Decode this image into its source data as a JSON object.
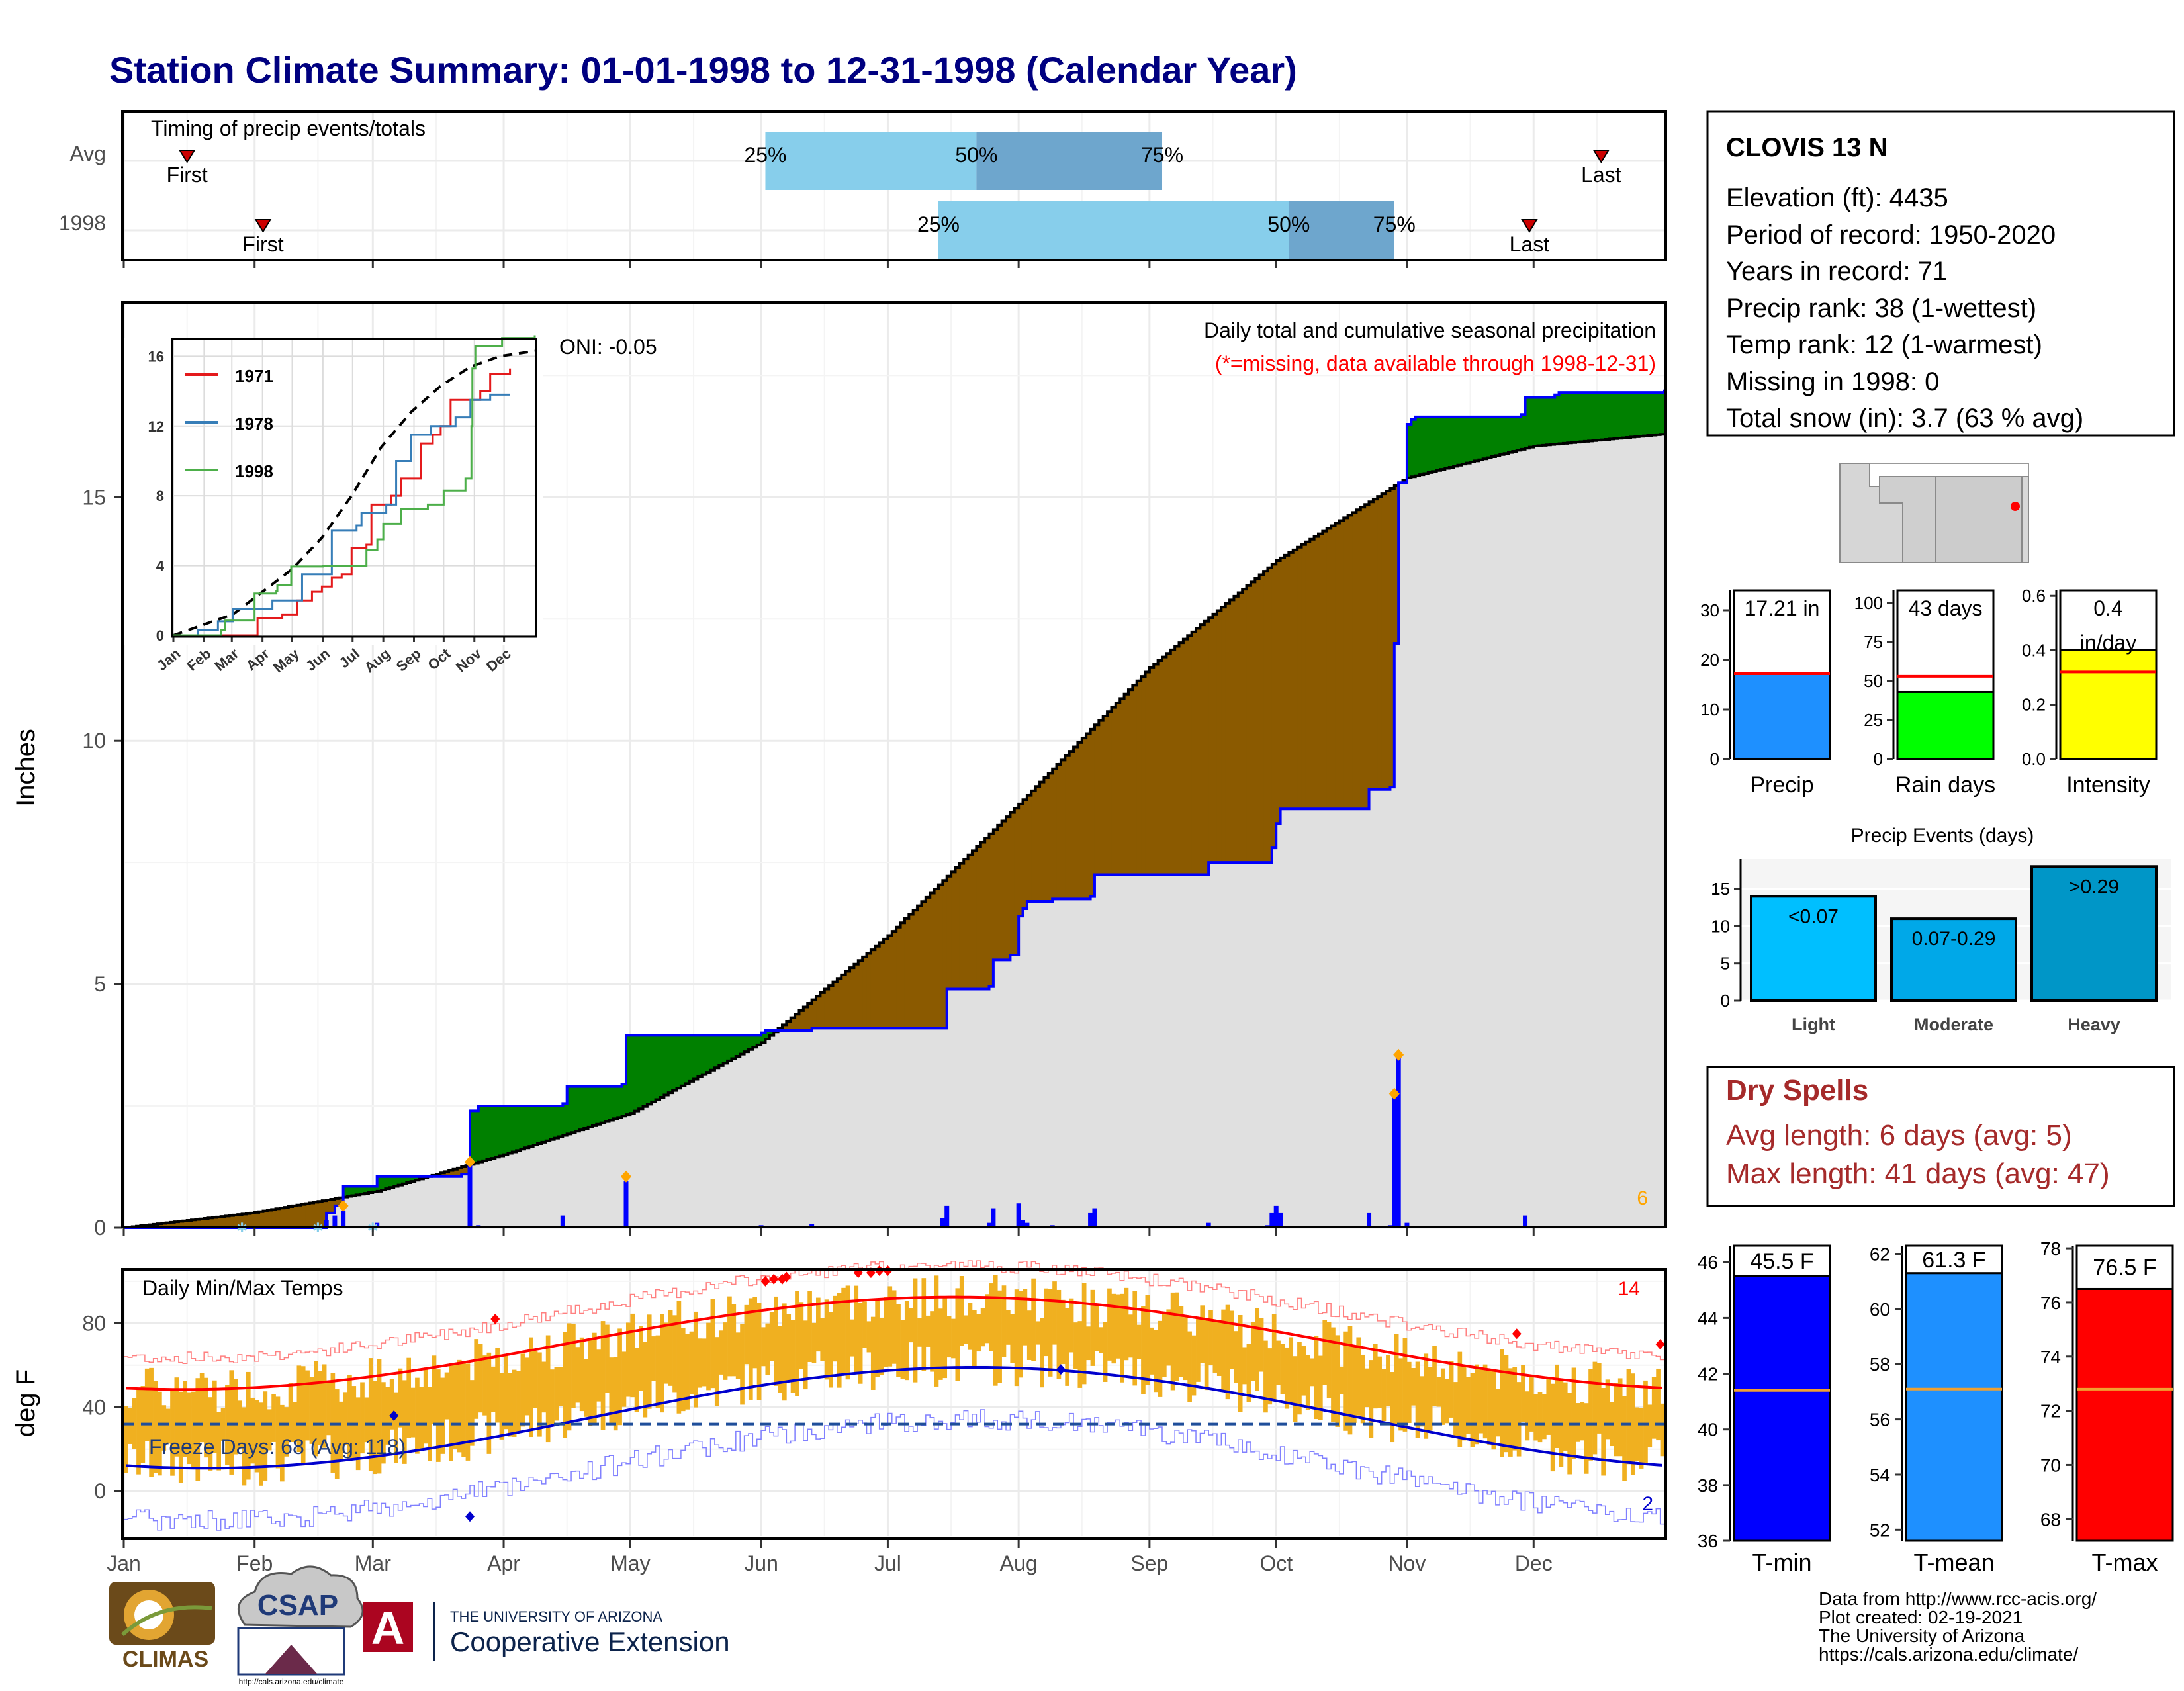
{
  "title": "Station Climate Summary: 01-01-1998 to 12-31-1998 (Calendar Year)",
  "colors": {
    "title": "#000080",
    "precip_bar": "#0000ff",
    "cum_line": "#0000ff",
    "above_fill": "#008000",
    "below_fill": "#8b5a00",
    "avg_fill": "#e0e0e0",
    "temp_bar": "#f0b020",
    "tmax_avg": "#ff0000",
    "tmin_avg": "#0000cd",
    "dry_spells": "#a52a2a",
    "missing_note": "#ff0000",
    "diamond": "#ffa500"
  },
  "months": [
    "Jan",
    "Feb",
    "Mar",
    "Apr",
    "May",
    "Jun",
    "Jul",
    "Aug",
    "Sep",
    "Oct",
    "Nov",
    "Dec"
  ],
  "timing": {
    "title": "Timing of precip events/totals",
    "rows": [
      {
        "label": "Avg",
        "first_doy": 15,
        "q25_doy": 152,
        "q50_doy": 202,
        "q75_doy": 246,
        "last_doy": 350
      },
      {
        "label": "1998",
        "first_doy": 33,
        "q25_doy": 193,
        "q50_doy": 276,
        "q75_doy": 301,
        "last_doy": 333
      }
    ],
    "first_label": "First",
    "last_label": "Last",
    "q25_label": "25%",
    "q50_label": "50%",
    "q75_label": "75%"
  },
  "main_chart": {
    "ylabel": "Inches",
    "yticks": [
      0,
      5,
      10,
      15
    ],
    "ylim": [
      0,
      19
    ],
    "title": "Daily total and cumulative seasonal precipitation",
    "missing_note": "(*=missing, data available through 1998-12-31)",
    "oni": "ONI: -0.05",
    "corner_count": "6",
    "cum_1998_steps": [
      [
        0,
        0
      ],
      [
        48,
        0.3
      ],
      [
        50,
        0.45
      ],
      [
        52,
        0.85
      ],
      [
        60,
        1.05
      ],
      [
        80,
        1.1
      ],
      [
        82,
        2.4
      ],
      [
        84,
        2.5
      ],
      [
        104,
        2.55
      ],
      [
        105,
        2.9
      ],
      [
        118,
        2.95
      ],
      [
        119,
        3.95
      ],
      [
        151,
        4.0
      ],
      [
        152,
        4.05
      ],
      [
        163,
        4.1
      ],
      [
        194,
        4.1
      ],
      [
        195,
        4.9
      ],
      [
        205,
        4.95
      ],
      [
        206,
        5.5
      ],
      [
        210,
        5.6
      ],
      [
        212,
        6.4
      ],
      [
        213,
        6.55
      ],
      [
        214,
        6.7
      ],
      [
        220,
        6.75
      ],
      [
        229,
        6.8
      ],
      [
        230,
        7.25
      ],
      [
        256,
        7.25
      ],
      [
        257,
        7.5
      ],
      [
        271,
        7.5
      ],
      [
        272,
        7.8
      ],
      [
        273,
        8.3
      ],
      [
        274,
        8.6
      ],
      [
        294,
        8.6
      ],
      [
        295,
        9.0
      ],
      [
        300,
        9.05
      ],
      [
        301,
        12.0
      ],
      [
        302,
        15.3
      ],
      [
        304,
        16.5
      ],
      [
        305,
        16.6
      ],
      [
        306,
        16.65
      ],
      [
        331,
        16.7
      ],
      [
        332,
        17.05
      ],
      [
        339,
        17.1
      ],
      [
        340,
        17.15
      ],
      [
        360,
        17.15
      ],
      [
        365,
        17.21
      ]
    ],
    "avg_cum_points": [
      [
        0,
        0
      ],
      [
        30,
        0.3
      ],
      [
        60,
        0.75
      ],
      [
        90,
        1.5
      ],
      [
        120,
        2.35
      ],
      [
        151,
        3.8
      ],
      [
        181,
        6.0
      ],
      [
        212,
        8.7
      ],
      [
        243,
        11.5
      ],
      [
        273,
        13.7
      ],
      [
        304,
        15.4
      ],
      [
        334,
        16.05
      ],
      [
        365,
        16.3
      ]
    ],
    "daily_bars": [
      [
        48,
        0.15
      ],
      [
        50,
        0.25
      ],
      [
        52,
        0.35
      ],
      [
        60,
        0.1
      ],
      [
        82,
        1.3
      ],
      [
        84,
        0.05
      ],
      [
        104,
        0.25
      ],
      [
        119,
        0.95
      ],
      [
        151,
        0.05
      ],
      [
        163,
        0.08
      ],
      [
        194,
        0.2
      ],
      [
        195,
        0.45
      ],
      [
        205,
        0.1
      ],
      [
        206,
        0.4
      ],
      [
        212,
        0.5
      ],
      [
        213,
        0.15
      ],
      [
        214,
        0.1
      ],
      [
        220,
        0.05
      ],
      [
        229,
        0.3
      ],
      [
        230,
        0.4
      ],
      [
        257,
        0.1
      ],
      [
        271,
        0.05
      ],
      [
        272,
        0.3
      ],
      [
        273,
        0.45
      ],
      [
        274,
        0.3
      ],
      [
        295,
        0.3
      ],
      [
        300,
        0.05
      ],
      [
        301,
        2.7
      ],
      [
        302,
        3.5
      ],
      [
        304,
        0.1
      ],
      [
        332,
        0.25
      ]
    ],
    "diamond_days": [
      [
        52,
        0.45
      ],
      [
        82,
        1.35
      ],
      [
        119,
        1.05
      ],
      [
        301,
        2.75
      ],
      [
        302,
        3.55
      ]
    ]
  },
  "inset": {
    "yticks": [
      0,
      4,
      8,
      12,
      16
    ],
    "ylim": [
      0,
      17
    ],
    "legend": [
      {
        "name": "1971",
        "color": "#e41a1c"
      },
      {
        "name": "1978",
        "color": "#377eb8"
      },
      {
        "name": "1998",
        "color": "#4daf4a"
      }
    ],
    "avg_series": [
      [
        0,
        0
      ],
      [
        30,
        0.6
      ],
      [
        60,
        1.2
      ],
      [
        90,
        2.5
      ],
      [
        120,
        3.8
      ],
      [
        150,
        5.6
      ],
      [
        180,
        8.0
      ],
      [
        210,
        10.8
      ],
      [
        240,
        12.8
      ],
      [
        270,
        14.3
      ],
      [
        300,
        15.4
      ],
      [
        330,
        16.0
      ],
      [
        365,
        16.3
      ]
    ],
    "series_1971": [
      [
        0,
        0
      ],
      [
        70,
        0.0
      ],
      [
        85,
        1.0
      ],
      [
        110,
        1.2
      ],
      [
        125,
        2.0
      ],
      [
        140,
        2.5
      ],
      [
        150,
        2.8
      ],
      [
        160,
        3.3
      ],
      [
        170,
        3.5
      ],
      [
        180,
        5.0
      ],
      [
        195,
        5.2
      ],
      [
        200,
        7.5
      ],
      [
        220,
        8.0
      ],
      [
        230,
        9.0
      ],
      [
        250,
        11.0
      ],
      [
        262,
        11.5
      ],
      [
        270,
        12.0
      ],
      [
        280,
        13.5
      ],
      [
        310,
        14.0
      ],
      [
        320,
        15.0
      ],
      [
        340,
        15.3
      ]
    ],
    "series_1978": [
      [
        0,
        0
      ],
      [
        25,
        0.3
      ],
      [
        45,
        0.8
      ],
      [
        60,
        1.5
      ],
      [
        100,
        2.0
      ],
      [
        130,
        3.5
      ],
      [
        160,
        6.0
      ],
      [
        185,
        6.3
      ],
      [
        190,
        7.0
      ],
      [
        215,
        7.5
      ],
      [
        225,
        10.0
      ],
      [
        240,
        11.5
      ],
      [
        260,
        12.0
      ],
      [
        285,
        12.5
      ],
      [
        300,
        13.5
      ],
      [
        320,
        13.8
      ],
      [
        340,
        13.8
      ]
    ],
    "series_1998": [
      [
        0,
        0
      ],
      [
        48,
        0.3
      ],
      [
        52,
        0.85
      ],
      [
        82,
        2.4
      ],
      [
        104,
        2.55
      ],
      [
        105,
        2.9
      ],
      [
        119,
        3.95
      ],
      [
        151,
        4.0
      ],
      [
        195,
        4.9
      ],
      [
        206,
        5.5
      ],
      [
        212,
        6.4
      ],
      [
        230,
        7.25
      ],
      [
        257,
        7.5
      ],
      [
        273,
        8.3
      ],
      [
        295,
        9.0
      ],
      [
        301,
        12.0
      ],
      [
        302,
        15.3
      ],
      [
        305,
        16.6
      ],
      [
        332,
        17.05
      ],
      [
        365,
        17.21
      ]
    ]
  },
  "temp_chart": {
    "ylabel": "deg F",
    "title": "Daily Min/Max Temps",
    "yticks": [
      0,
      40,
      80
    ],
    "ylim": [
      -22,
      105
    ],
    "freeze_line": 32,
    "freeze_label": "Freeze Days: 68 (Avg: 118)",
    "count_hot": "14",
    "count_cold": "2"
  },
  "info": {
    "station": "CLOVIS 13 N",
    "lines": [
      "Elevation (ft): 4435",
      "Period of record: 1950-2020",
      "Years in record: 71",
      "Precip rank: 38 (1-wettest)",
      "Temp rank: 12 (1-warmest)",
      "Missing in 1998: 0",
      "Total snow (in): 3.7 (63 % avg)"
    ]
  },
  "small_bars": [
    {
      "label": "Precip",
      "value_label": "17.21 in",
      "value": 17.21,
      "avg": 17.2,
      "yticks": [
        0,
        10,
        20,
        30
      ],
      "ymax": 34,
      "color": "#1e90ff"
    },
    {
      "label": "Rain days",
      "value_label": "43 days",
      "value": 43,
      "avg": 53,
      "yticks": [
        0,
        25,
        50,
        75,
        100
      ],
      "ymax": 108,
      "color": "#00ff00"
    },
    {
      "label": "Intensity",
      "value_label": "0.4\nin/day",
      "value": 0.4,
      "avg": 0.32,
      "yticks": [
        "0.0",
        "0.2",
        "0.4",
        "0.6"
      ],
      "ymax": 0.62,
      "color": "#ffff00"
    }
  ],
  "events": {
    "title": "Precip Events (days)",
    "categories": [
      "Light",
      "Moderate",
      "Heavy"
    ],
    "labels": [
      "<0.07",
      "0.07-0.29",
      ">0.29"
    ],
    "values": [
      14,
      11,
      18
    ],
    "yticks": [
      0,
      5,
      10,
      15
    ],
    "ymax": 19,
    "colors": [
      "#00bfff",
      "#00a8e8",
      "#0096c7"
    ]
  },
  "dry_spells": {
    "title": "Dry Spells",
    "avg_line": "Avg length: 6 days (avg: 5)",
    "max_line": "Max length: 41 days (avg: 47)"
  },
  "temp_bars": [
    {
      "label": "T-min",
      "value_label": "45.5 F",
      "value": 45.5,
      "avg": 41.4,
      "yticks": [
        36,
        38,
        40,
        42,
        44,
        46
      ],
      "ylim": [
        36,
        46.6
      ],
      "color": "#0000ff"
    },
    {
      "label": "T-mean",
      "value_label": "61.3 F",
      "value": 61.3,
      "avg": 57.1,
      "yticks": [
        52,
        54,
        56,
        58,
        60,
        62
      ],
      "ylim": [
        51.6,
        62.3
      ],
      "color": "#1e90ff"
    },
    {
      "label": "T-max",
      "value_label": "76.5 F",
      "value": 76.5,
      "avg": 72.8,
      "yticks": [
        68,
        70,
        72,
        74,
        76,
        78
      ],
      "ylim": [
        67.2,
        78.1
      ],
      "color": "#ff0000"
    }
  ],
  "credits": [
    "Data from http://www.rcc-acis.org/",
    "Plot created: 02-19-2021",
    "The University of Arizona",
    "https://cals.arizona.edu/climate/"
  ],
  "logos": {
    "climas": "CLIMAS",
    "csap": "CSAP",
    "csap_url": "http://cals.arizona.edu/climate",
    "ua_small": "THE UNIVERSITY OF ARIZONA",
    "ua_big": "Cooperative Extension",
    "ua_letter": "A"
  }
}
